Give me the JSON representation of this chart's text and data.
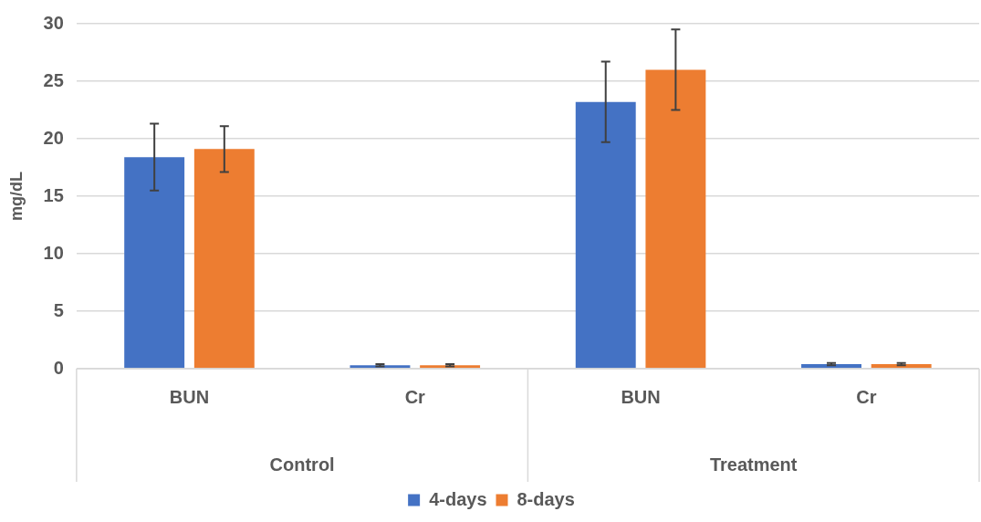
{
  "chart_data": {
    "type": "bar",
    "ylabel": "mg/dL",
    "categories": [
      "BUN",
      "Cr",
      "BUN",
      "Cr"
    ],
    "annotations": [
      "Control",
      "Treatment"
    ],
    "series": [
      {
        "name": "4-days",
        "color": "#4472c4",
        "values": [
          18.4,
          0.3,
          23.2,
          0.4
        ],
        "errors": [
          2.9,
          0.1,
          3.5,
          0.1
        ]
      },
      {
        "name": "8-days",
        "color": "#ed7d31",
        "values": [
          19.1,
          0.3,
          26.0,
          0.4
        ],
        "errors": [
          2.0,
          0.1,
          3.5,
          0.1
        ]
      }
    ],
    "ylim": [
      0,
      30
    ],
    "yticks": [
      0,
      5,
      10,
      15,
      20,
      25,
      30
    ],
    "grid": "y",
    "legend": "bottom"
  }
}
